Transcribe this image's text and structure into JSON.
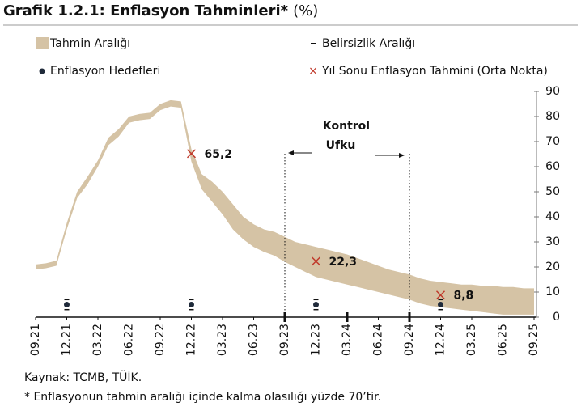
{
  "chart_data": {
    "type": "range",
    "title": "Grafik 1.2.1: Enflasyon Tahminleri*",
    "unit": "(%)",
    "categories": [
      "09.21",
      null,
      null,
      "12.21",
      null,
      null,
      "03.22",
      null,
      null,
      "06.22",
      null,
      null,
      "09.22",
      null,
      null,
      "12.22",
      null,
      null,
      "03.23",
      null,
      null,
      "06.23",
      null,
      null,
      "09.23",
      null,
      null,
      "12.23",
      null,
      null,
      "03.24",
      null,
      null,
      "06.24",
      null,
      null,
      "09.24",
      null,
      null,
      "12.24",
      null,
      null,
      "03.25",
      null,
      null,
      "06.25",
      null,
      null,
      "09.25"
    ],
    "band": {
      "name": "Tahmin Aralığı",
      "color": "#d5c3a5",
      "low": [
        19,
        19.5,
        20.5,
        35,
        47.5,
        53,
        60,
        68.5,
        72,
        77.5,
        78.5,
        79,
        82.5,
        84,
        83.5,
        62,
        51,
        46,
        41,
        35,
        31,
        28,
        26,
        24.5,
        22,
        20,
        18,
        16,
        15,
        14,
        13,
        12,
        11,
        10,
        9,
        8,
        7,
        5.5,
        4.5,
        4,
        3.5,
        3,
        2.5,
        2,
        1.5,
        1,
        1,
        1,
        1
      ],
      "high": [
        21,
        21.5,
        22.5,
        37.5,
        50,
        56,
        62.5,
        71.5,
        75,
        80,
        81,
        81.5,
        85,
        86.5,
        86,
        67,
        57,
        54,
        50,
        45,
        40,
        37,
        35,
        34,
        32,
        30,
        29,
        28,
        27,
        26,
        25,
        23.5,
        22,
        20.5,
        19,
        18,
        17,
        15.5,
        14.5,
        14,
        13.5,
        13,
        13,
        12.5,
        12.5,
        12,
        12,
        11.5,
        11.5
      ]
    },
    "uncertainty_name": "Belirsizlik Aralığı",
    "targets": {
      "name": "Enflasyon Hedefleri",
      "color": "#1f2a3a",
      "categories": [
        "12.21",
        "12.22",
        "12.23",
        "12.24"
      ],
      "values": [
        5,
        5,
        5,
        5
      ],
      "error": [
        2,
        2,
        2,
        2
      ]
    },
    "forecasts": {
      "name": "Yıl Sonu Enflasyon Tahmini (Orta Nokta)",
      "color": "#c0392b",
      "categories": [
        "12.22",
        "12.23",
        "12.24"
      ],
      "values": [
        65.2,
        22.3,
        8.8
      ],
      "value_labels": [
        "65,2",
        "22,3",
        "8,8"
      ]
    },
    "control_horizon": {
      "label": [
        "Kontrol",
        "Ufku"
      ],
      "start": "09.23",
      "end": "09.24"
    },
    "ylim": [
      0,
      90
    ],
    "yticks": [
      0,
      10,
      20,
      30,
      40,
      50,
      60,
      70,
      80,
      90
    ],
    "notes": [
      "Kaynak: TCMB, TÜİK.",
      "* Enflasyonun tahmin aralığı içinde kalma olasılığı yüzde 70’tir."
    ]
  }
}
